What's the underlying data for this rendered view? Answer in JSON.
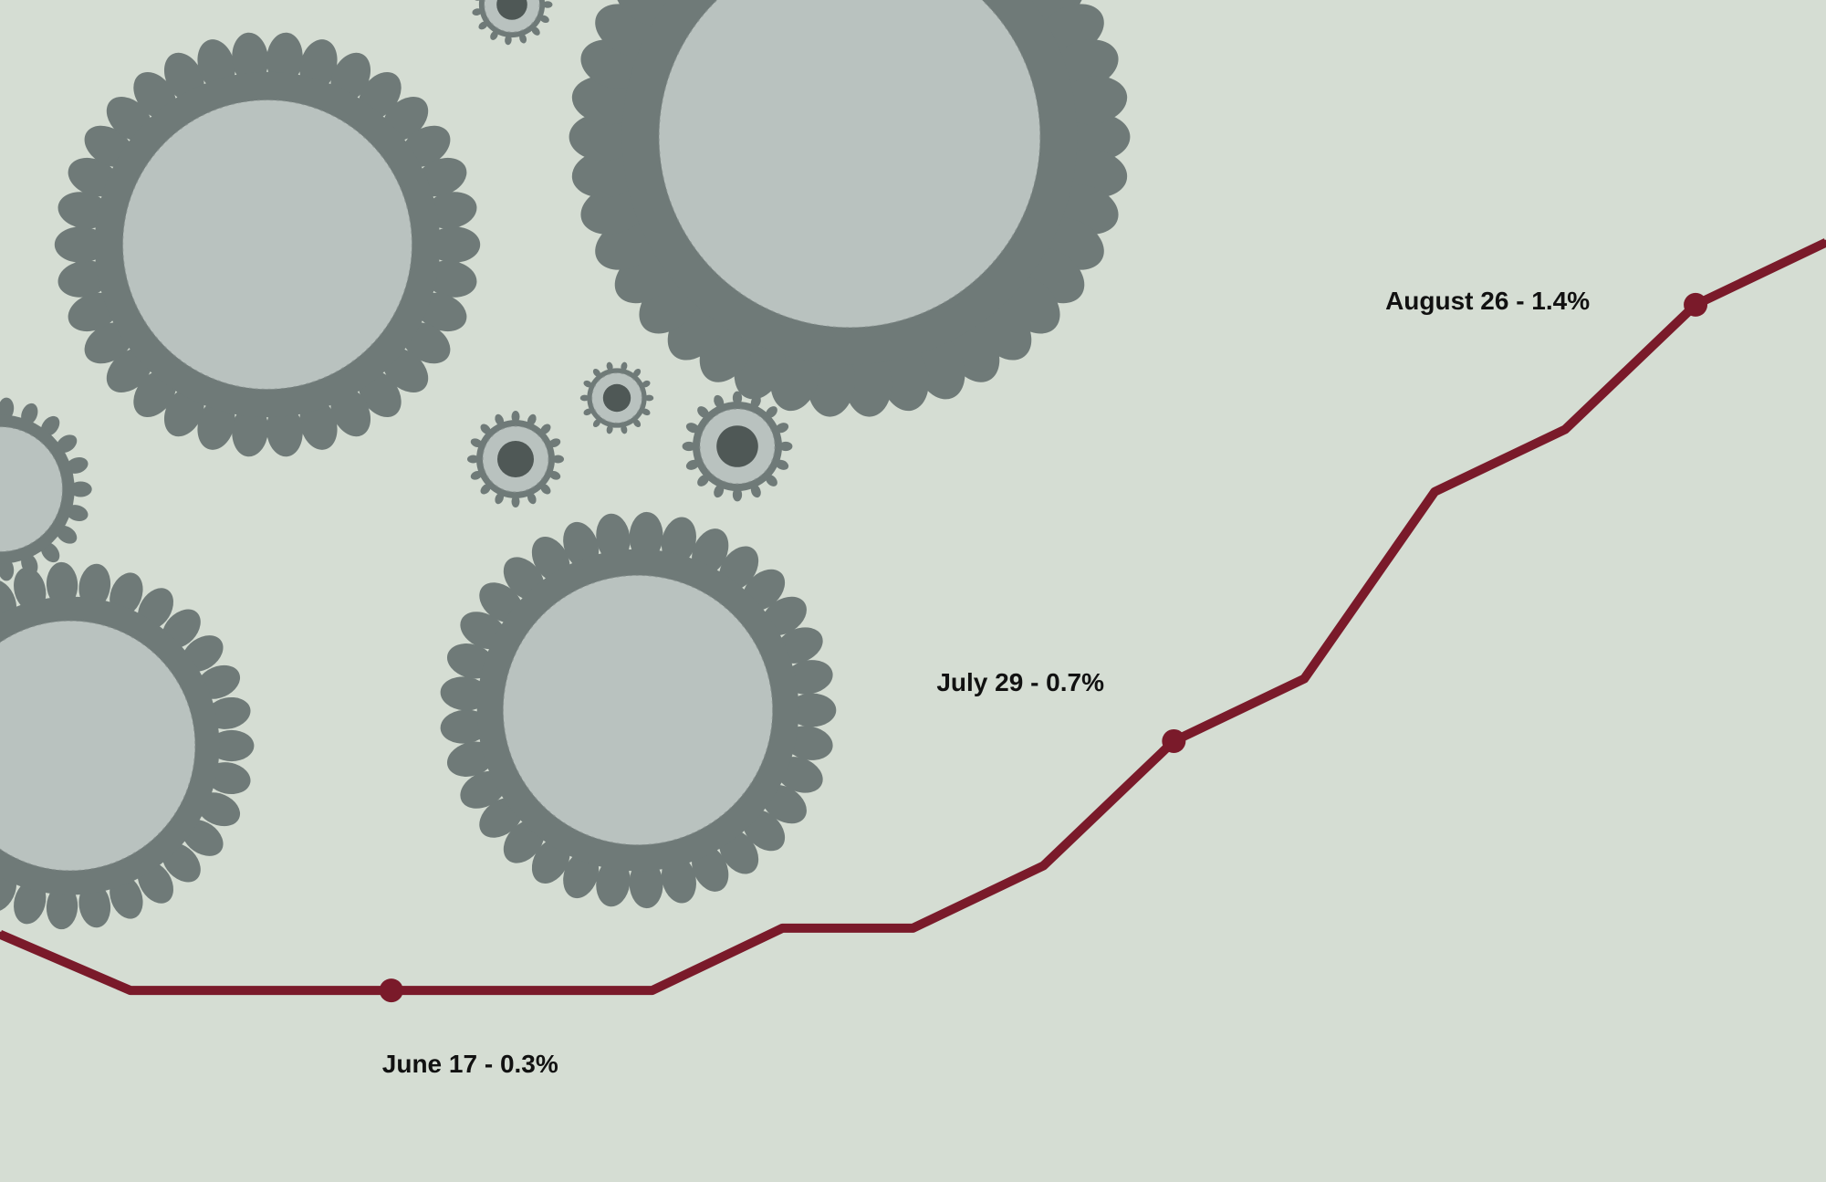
{
  "chart_data": {
    "type": "line",
    "title": "",
    "xlabel": "",
    "ylabel": "",
    "x_range": [
      "2020-05-27",
      "2020-09-02"
    ],
    "ylim": [
      0,
      1.7
    ],
    "grid": false,
    "axes_visible": false,
    "line_color": "#7a1a2a",
    "background_color": "#d5ddd3",
    "series": [
      {
        "x": [
          "2020-05-27",
          "2020-06-03",
          "2020-06-17",
          "2020-07-01",
          "2020-07-08",
          "2020-07-15",
          "2020-07-22",
          "2020-07-29",
          "2020-08-05",
          "2020-08-12",
          "2020-08-19",
          "2020-08-26",
          "2020-09-02"
        ],
        "values": [
          0.39,
          0.3,
          0.3,
          0.3,
          0.4,
          0.4,
          0.5,
          0.7,
          0.8,
          1.1,
          1.2,
          1.4,
          1.5
        ]
      }
    ],
    "annotations": [
      {
        "date": "2020-06-17",
        "value": 0.3,
        "text": "June 17 - 0.3%"
      },
      {
        "date": "2020-07-29",
        "value": 0.7,
        "text": "July 29 - 0.7%"
      },
      {
        "date": "2020-08-26",
        "value": 1.4,
        "text": "August 26 - 1.4%"
      }
    ]
  },
  "decoration": {
    "icon": "coronavirus-illustration",
    "color": "#6f7a78"
  }
}
